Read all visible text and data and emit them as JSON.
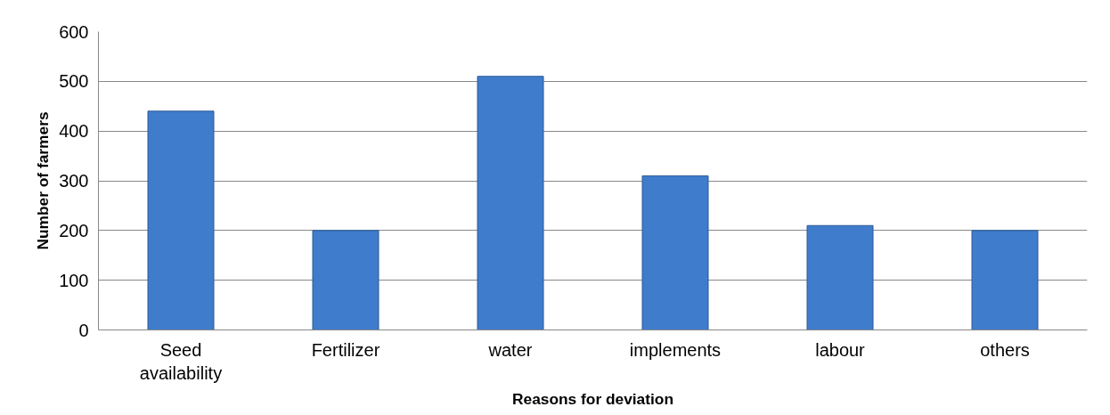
{
  "chart_data": {
    "type": "bar",
    "xlabel": "Reasons for deviation",
    "ylabel": "Number of farmers",
    "categories": [
      "Seed availability",
      "Fertilizer",
      "water",
      "implements",
      "labour",
      "others"
    ],
    "values": [
      440,
      200,
      510,
      310,
      210,
      200
    ],
    "color": "#3f7ccc",
    "ylim": [
      0,
      600
    ],
    "yticks": [
      0,
      100,
      200,
      300,
      400,
      500,
      600
    ],
    "grid": "y"
  }
}
